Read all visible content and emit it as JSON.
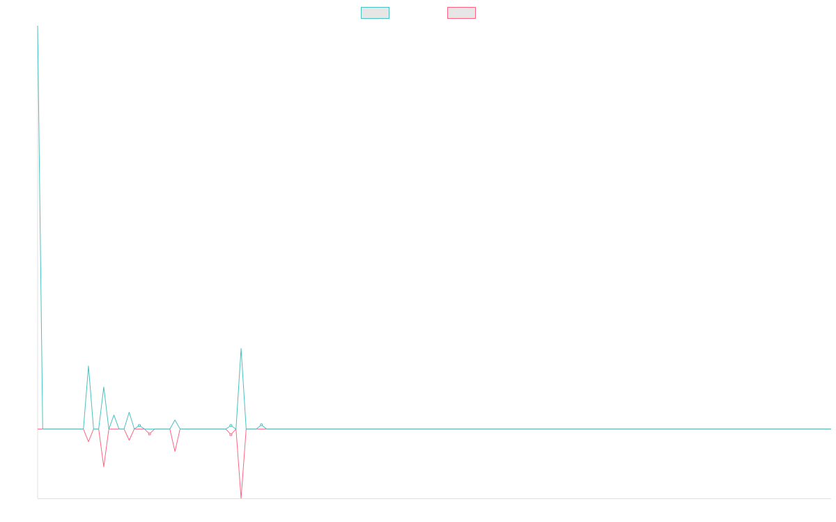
{
  "chart_data": {
    "type": "line",
    "title": "",
    "xlabel": "",
    "ylabel": "",
    "legend_position": "top-center",
    "grid": false,
    "x": [
      0,
      1,
      2,
      3,
      4,
      5,
      6,
      7,
      8,
      9,
      10,
      11,
      12,
      13,
      14,
      15,
      16,
      17,
      18,
      19,
      20,
      21,
      22,
      23,
      24,
      25,
      26,
      27,
      28,
      29,
      30,
      31,
      32,
      33,
      34,
      35,
      36,
      37,
      38,
      39,
      40,
      41,
      42,
      43,
      44,
      45,
      46,
      47,
      48,
      49,
      50,
      51,
      52,
      53,
      54,
      55,
      56,
      57,
      58,
      59,
      60,
      61,
      62,
      63,
      64,
      65,
      66,
      67,
      68,
      69,
      70,
      71,
      72,
      73,
      74,
      75,
      76,
      77,
      78,
      79,
      80,
      81,
      82,
      83,
      84,
      85,
      86,
      87,
      88,
      89,
      90,
      91,
      92,
      93,
      94,
      95,
      96,
      97,
      98,
      99,
      100,
      101,
      102,
      103,
      104,
      105,
      106,
      107,
      108,
      109,
      110,
      111,
      112,
      113,
      114,
      115,
      116,
      117,
      118,
      119,
      120,
      121,
      122,
      123,
      124,
      125,
      126,
      127,
      128,
      129,
      130,
      131,
      132,
      133,
      134,
      135,
      136,
      137,
      138,
      139,
      140,
      141,
      142,
      143,
      144,
      145,
      146,
      147,
      148,
      149,
      150,
      151,
      152,
      153,
      154,
      155,
      156
    ],
    "ylim": [
      -0.99,
      5.76
    ],
    "series": [
      {
        "name": "",
        "color": "#4bc0c0",
        "values": [
          5.76,
          0,
          0,
          0,
          0,
          0,
          0,
          0,
          0,
          0,
          0.9,
          0,
          0,
          0.6,
          0,
          0.2,
          0,
          0,
          0.24,
          0,
          0.05,
          0,
          0,
          0,
          0,
          0,
          0,
          0.13,
          0,
          0,
          0,
          0,
          0,
          0,
          0,
          0,
          0,
          0,
          0.05,
          0,
          1.15,
          0,
          0,
          0,
          0.06,
          0,
          0,
          0,
          0,
          0,
          0,
          0,
          0,
          0,
          0,
          0,
          0,
          0,
          0,
          0,
          0,
          0,
          0,
          0,
          0,
          0,
          0,
          0,
          0,
          0,
          0,
          0,
          0,
          0,
          0,
          0,
          0,
          0,
          0,
          0,
          0,
          0,
          0,
          0,
          0,
          0,
          0,
          0,
          0,
          0,
          0,
          0,
          0,
          0,
          0,
          0,
          0,
          0,
          0,
          0,
          0,
          0,
          0,
          0,
          0,
          0,
          0,
          0,
          0,
          0,
          0,
          0,
          0,
          0,
          0,
          0,
          0,
          0,
          0,
          0,
          0,
          0,
          0,
          0,
          0,
          0,
          0,
          0,
          0,
          0,
          0,
          0,
          0,
          0,
          0,
          0,
          0,
          0,
          0,
          0,
          0,
          0,
          0,
          0,
          0,
          0,
          0,
          0,
          0,
          0,
          0,
          0,
          0,
          0,
          0,
          0,
          0
        ]
      },
      {
        "name": "",
        "color": "#ff6384",
        "values": [
          0,
          0,
          0,
          0,
          0,
          0,
          0,
          0,
          0,
          0,
          -0.18,
          0,
          0,
          -0.54,
          0,
          0,
          0,
          0,
          -0.16,
          0,
          0,
          0,
          -0.07,
          0,
          0,
          0,
          0,
          -0.32,
          0,
          0,
          0,
          0,
          0,
          0,
          0,
          0,
          0,
          0,
          -0.08,
          0,
          -0.99,
          0,
          0,
          0,
          0,
          0,
          0,
          0,
          0,
          0,
          0,
          0,
          0,
          0,
          0,
          0,
          0,
          0,
          0,
          0,
          0,
          0,
          0,
          0,
          0,
          0,
          0,
          0,
          0,
          0,
          0,
          0,
          0,
          0,
          0,
          0,
          0,
          0,
          0,
          0,
          0,
          0,
          0,
          0,
          0,
          0,
          0,
          0,
          0,
          0,
          0,
          0,
          0,
          0,
          0,
          0,
          0,
          0,
          0,
          0,
          0,
          0,
          0,
          0,
          0,
          0,
          0,
          0,
          0,
          0,
          0,
          0,
          0,
          0,
          0,
          0,
          0,
          0,
          0,
          0,
          0,
          0,
          0,
          0,
          0,
          0,
          0,
          0,
          0,
          0,
          0,
          0,
          0,
          0,
          0,
          0,
          0,
          0,
          0,
          0,
          0,
          0,
          0,
          0,
          0,
          0,
          0,
          0,
          0,
          0,
          0,
          0,
          0,
          0,
          0,
          0,
          0
        ]
      }
    ]
  }
}
